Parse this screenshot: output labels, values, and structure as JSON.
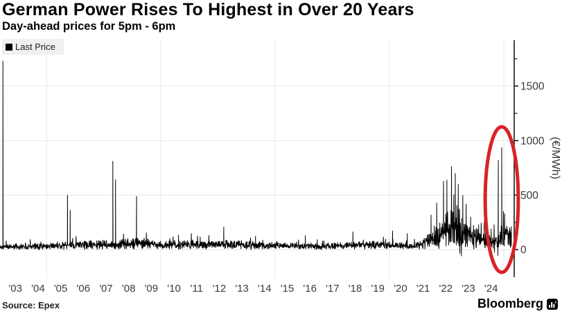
{
  "page": {
    "title": "German Power Rises To Highest in Over 20 Years",
    "subtitle": "Day-ahead prices for 5pm - 6pm",
    "source": "Source: Epex",
    "brand": "Bloomberg",
    "brand_icon": "bar-chart-icon"
  },
  "legend": {
    "items": [
      {
        "label": "Last Price",
        "marker_color": "#000000"
      }
    ]
  },
  "colors": {
    "background": "#ffffff",
    "line": "#000000",
    "grid": "#e7e7e7",
    "axis": "#1a1a1a",
    "tick_text": "#3a3a3a",
    "annotation": "#d92228",
    "legend_bg": "#f0f0f0"
  },
  "chart_data": {
    "type": "line",
    "title": "German Power Rises To Highest in Over 20 Years",
    "subtitle": "Day-ahead prices for 5pm - 6pm",
    "series": [
      {
        "name": "Last Price",
        "color": "#000000"
      }
    ],
    "ylabel": "(€/MWh)",
    "yticks": [
      0,
      500,
      1000,
      1500
    ],
    "ylim": [
      -240,
      1920
    ],
    "grid": true,
    "legend_position": "top-left",
    "x_range_years": [
      2002.32,
      2025.02
    ],
    "x_ticks": [
      {
        "year": 2003,
        "label": "'03"
      },
      {
        "year": 2004,
        "label": "'04"
      },
      {
        "year": 2005,
        "label": "'05"
      },
      {
        "year": 2006,
        "label": "'06"
      },
      {
        "year": 2007,
        "label": "'07"
      },
      {
        "year": 2008,
        "label": "'08"
      },
      {
        "year": 2009,
        "label": "'09"
      },
      {
        "year": 2010,
        "label": "'10"
      },
      {
        "year": 2011,
        "label": "'11"
      },
      {
        "year": 2012,
        "label": "'12"
      },
      {
        "year": 2013,
        "label": "'13"
      },
      {
        "year": 2014,
        "label": "'14"
      },
      {
        "year": 2015,
        "label": "'15"
      },
      {
        "year": 2016,
        "label": "'16"
      },
      {
        "year": 2017,
        "label": "'17"
      },
      {
        "year": 2018,
        "label": "'18"
      },
      {
        "year": 2019,
        "label": "'19"
      },
      {
        "year": 2020,
        "label": "'20"
      },
      {
        "year": 2021,
        "label": "'21"
      },
      {
        "year": 2022,
        "label": "'22"
      },
      {
        "year": 2023,
        "label": "'23"
      },
      {
        "year": 2024,
        "label": "'24"
      }
    ],
    "baseline_anchors": [
      [
        2002.32,
        26
      ],
      [
        2003.5,
        30
      ],
      [
        2004.5,
        33
      ],
      [
        2005.5,
        40
      ],
      [
        2006.5,
        46
      ],
      [
        2007.5,
        42
      ],
      [
        2008.2,
        62
      ],
      [
        2009.0,
        48
      ],
      [
        2009.5,
        40
      ],
      [
        2010.5,
        45
      ],
      [
        2011.5,
        51
      ],
      [
        2012.5,
        44
      ],
      [
        2013.5,
        39
      ],
      [
        2014.5,
        34
      ],
      [
        2015.5,
        32
      ],
      [
        2016.5,
        30
      ],
      [
        2017.5,
        35
      ],
      [
        2018.5,
        46
      ],
      [
        2019.5,
        40
      ],
      [
        2020.4,
        31
      ],
      [
        2020.9,
        48
      ],
      [
        2021.3,
        80
      ],
      [
        2021.7,
        130
      ],
      [
        2022.0,
        175
      ],
      [
        2022.3,
        215
      ],
      [
        2022.6,
        195
      ],
      [
        2022.9,
        140
      ],
      [
        2023.2,
        105
      ],
      [
        2023.6,
        92
      ],
      [
        2024.0,
        78
      ],
      [
        2024.35,
        85
      ],
      [
        2024.55,
        150
      ],
      [
        2024.75,
        130
      ],
      [
        2024.9,
        120
      ]
    ],
    "spikes": [
      [
        2002.45,
        1730
      ],
      [
        2005.3,
        500
      ],
      [
        2005.42,
        365
      ],
      [
        2007.3,
        812
      ],
      [
        2007.42,
        645
      ],
      [
        2008.35,
        490
      ],
      [
        2010.2,
        135
      ],
      [
        2012.2,
        210
      ],
      [
        2013.6,
        125
      ],
      [
        2015.8,
        130
      ],
      [
        2017.9,
        165
      ],
      [
        2019.65,
        175
      ],
      [
        2020.3,
        150
      ],
      [
        2021.35,
        320
      ],
      [
        2021.6,
        430
      ],
      [
        2021.9,
        630
      ],
      [
        2022.05,
        640
      ],
      [
        2022.25,
        762
      ],
      [
        2022.42,
        700
      ],
      [
        2022.55,
        600
      ],
      [
        2022.62,
        -35
      ],
      [
        2022.75,
        500
      ],
      [
        2022.9,
        420
      ],
      [
        2023.1,
        300
      ],
      [
        2023.45,
        230
      ],
      [
        2023.7,
        265
      ],
      [
        2024.0,
        190
      ],
      [
        2024.15,
        -25
      ],
      [
        2024.3,
        -55
      ],
      [
        2024.32,
        820
      ],
      [
        2024.47,
        936
      ],
      [
        2024.6,
        330
      ]
    ],
    "noise": {
      "seed": 11,
      "points": 2300,
      "amplitude_ratio": 0.55,
      "pop_probability": 0.025,
      "pop_scale": 1.8
    },
    "annotation": {
      "type": "ellipse",
      "center_year": 2024.47,
      "center_value": 459,
      "radius_years": 0.73,
      "radius_value": 667,
      "color": "#d92228",
      "stroke_width": 5
    }
  }
}
